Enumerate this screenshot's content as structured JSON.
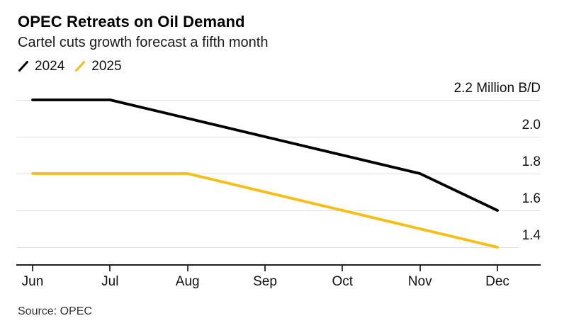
{
  "header": {
    "title": "OPEC Retreats on Oil Demand",
    "subtitle": "Cartel cuts growth forecast a fifth month"
  },
  "legend": {
    "items": [
      {
        "label": "2024",
        "color": "#000000"
      },
      {
        "label": "2025",
        "color": "#FABD14"
      }
    ]
  },
  "source": {
    "text": "Source: OPEC"
  },
  "colors": {
    "background": "#ffffff",
    "series_2024": "#000000",
    "series_2025": "#FABD14",
    "gridline": "#e2e2e2",
    "axis_line": "#1f1f1f",
    "axis_tick": "#3c3c3c",
    "label_text": "#111111",
    "source_text": "#333333"
  },
  "chart_data": {
    "type": "line",
    "title": "OPEC Retreats on Oil Demand",
    "subtitle": "Cartel cuts growth forecast a fifth month",
    "categories": [
      "Jun",
      "Jul",
      "Aug",
      "Sep",
      "Oct",
      "Nov",
      "Dec"
    ],
    "series": [
      {
        "name": "2024",
        "color": "#000000",
        "values": [
          2.2,
          2.2,
          2.1,
          2.0,
          1.9,
          1.8,
          1.6
        ]
      },
      {
        "name": "2025",
        "color": "#FABD14",
        "values": [
          1.8,
          1.8,
          1.8,
          1.7,
          1.6,
          1.5,
          1.4
        ]
      }
    ],
    "yticks": [
      {
        "value": 2.2,
        "label": "2.2 Million B/D"
      },
      {
        "value": 2.0,
        "label": "2.0"
      },
      {
        "value": 1.8,
        "label": "1.8"
      },
      {
        "value": 1.6,
        "label": "1.6"
      },
      {
        "value": 1.4,
        "label": "1.4"
      }
    ],
    "ylim": [
      1.3,
      2.2
    ],
    "unit": "Million B/D",
    "grid": "horizontal",
    "legend_position": "top-left",
    "source": "Source: OPEC"
  }
}
